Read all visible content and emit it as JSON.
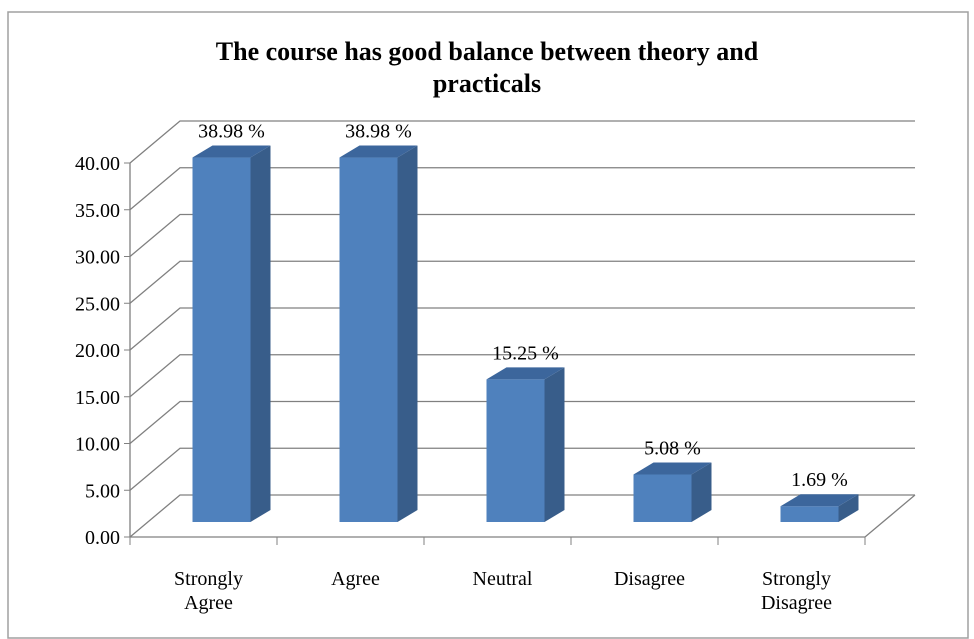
{
  "chart_data": {
    "type": "bar3d",
    "title": "The course has good balance between theory and practicals",
    "categories": [
      "Strongly Agree",
      "Agree",
      "Neutral",
      "Disagree",
      "Strongly Disagree"
    ],
    "values": [
      38.98,
      38.98,
      15.25,
      5.08,
      1.69
    ],
    "value_labels": [
      "38.98 %",
      "38.98 %",
      "15.25 %",
      "5.08 %",
      "1.69 %"
    ],
    "color": "#4f81bd",
    "ylim": [
      0,
      40
    ],
    "yticks": [
      {
        "value": 0,
        "label": "0.00"
      },
      {
        "value": 5,
        "label": "5.00"
      },
      {
        "value": 10,
        "label": "10.00"
      },
      {
        "value": 15,
        "label": "15.00"
      },
      {
        "value": 20,
        "label": "20.00"
      },
      {
        "value": 25,
        "label": "25.00"
      },
      {
        "value": 30,
        "label": "30.00"
      },
      {
        "value": 35,
        "label": "35.00"
      },
      {
        "value": 40,
        "label": "40.00"
      }
    ],
    "grid": true
  }
}
